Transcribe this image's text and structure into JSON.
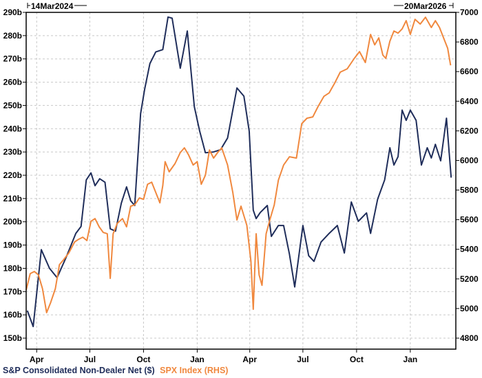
{
  "chart_data": {
    "type": "line",
    "title": "",
    "start_label": "14Mar2024",
    "end_label": "20Mar2026",
    "x_range": [
      "2024-03-14",
      "2026-03-20"
    ],
    "x_ticks": [
      {
        "date": "2024-04-01",
        "label": "Apr"
      },
      {
        "date": "2024-07-01",
        "label": "Jul"
      },
      {
        "date": "2024-10-01",
        "label": "Oct"
      },
      {
        "date": "2025-01-01",
        "label": "Jan"
      },
      {
        "date": "2025-04-01",
        "label": "Apr"
      },
      {
        "date": "2025-07-01",
        "label": "Jul"
      },
      {
        "date": "2025-10-01",
        "label": "Oct"
      },
      {
        "date": "2026-01-01",
        "label": "Jan"
      }
    ],
    "y_left": {
      "range": [
        150,
        290
      ],
      "ticks": [
        "150b",
        "160b",
        "170b",
        "180b",
        "190b",
        "200b",
        "210b",
        "220b",
        "230b",
        "240b",
        "250b",
        "260b",
        "270b",
        "280b",
        "290b"
      ]
    },
    "y_right": {
      "range": [
        4800,
        7000
      ],
      "ticks": [
        "4800",
        "5000",
        "5200",
        "5400",
        "5600",
        "5800",
        "6000",
        "6200",
        "6400",
        "6600",
        "6800",
        "7000"
      ]
    },
    "grid": true,
    "legend_placement": "bottom-left",
    "series": [
      {
        "name": "S&P Consolidated Non-Dealer Net ($)",
        "axis": "left",
        "color": "#1f2d5a",
        "points": [
          [
            "2024-03-16",
            161.8
          ],
          [
            "2024-03-26",
            155
          ],
          [
            "2024-04-09",
            188
          ],
          [
            "2024-04-23",
            180
          ],
          [
            "2024-05-06",
            176
          ],
          [
            "2024-05-21",
            184.5
          ],
          [
            "2024-06-07",
            195
          ],
          [
            "2024-06-16",
            198
          ],
          [
            "2024-06-25",
            218
          ],
          [
            "2024-07-03",
            221
          ],
          [
            "2024-07-10",
            215.5
          ],
          [
            "2024-07-18",
            218.5
          ],
          [
            "2024-07-27",
            217
          ],
          [
            "2024-08-05",
            197
          ],
          [
            "2024-08-14",
            196
          ],
          [
            "2024-08-24",
            208
          ],
          [
            "2024-09-02",
            215
          ],
          [
            "2024-09-09",
            209
          ],
          [
            "2024-09-16",
            207
          ],
          [
            "2024-09-26",
            246.5
          ],
          [
            "2024-10-03",
            257
          ],
          [
            "2024-10-12",
            268
          ],
          [
            "2024-10-22",
            273
          ],
          [
            "2024-11-03",
            274
          ],
          [
            "2024-11-12",
            288
          ],
          [
            "2024-11-19",
            287.5
          ],
          [
            "2024-12-03",
            266
          ],
          [
            "2024-12-15",
            282
          ],
          [
            "2024-12-27",
            249.5
          ],
          [
            "2025-01-05",
            239.2
          ],
          [
            "2025-01-15",
            229.7
          ],
          [
            "2025-01-29",
            230
          ],
          [
            "2025-02-10",
            231
          ],
          [
            "2025-02-22",
            236
          ],
          [
            "2025-03-10",
            257.5
          ],
          [
            "2025-03-22",
            254
          ],
          [
            "2025-03-31",
            239
          ],
          [
            "2025-04-07",
            205
          ],
          [
            "2025-04-12",
            201.4
          ],
          [
            "2025-04-19",
            204
          ],
          [
            "2025-05-01",
            207
          ],
          [
            "2025-05-08",
            193.7
          ],
          [
            "2025-05-20",
            198.4
          ],
          [
            "2025-05-29",
            198.4
          ],
          [
            "2025-06-08",
            186
          ],
          [
            "2025-06-17",
            172
          ],
          [
            "2025-07-01",
            198.4
          ],
          [
            "2025-07-11",
            185.4
          ],
          [
            "2025-07-20",
            183
          ],
          [
            "2025-08-01",
            191.3
          ],
          [
            "2025-08-15",
            195
          ],
          [
            "2025-08-29",
            198.4
          ],
          [
            "2025-09-10",
            186.6
          ],
          [
            "2025-09-22",
            208.5
          ],
          [
            "2025-10-04",
            200.2
          ],
          [
            "2025-10-18",
            203.8
          ],
          [
            "2025-10-25",
            195
          ],
          [
            "2025-11-06",
            209.7
          ],
          [
            "2025-11-18",
            218
          ],
          [
            "2025-11-27",
            231.8
          ],
          [
            "2025-12-04",
            224.4
          ],
          [
            "2025-12-11",
            228
          ],
          [
            "2025-12-18",
            248
          ],
          [
            "2025-12-25",
            243.6
          ],
          [
            "2026-01-01",
            248
          ],
          [
            "2026-01-11",
            243.6
          ],
          [
            "2026-01-20",
            224.4
          ],
          [
            "2026-01-30",
            231.8
          ],
          [
            "2026-02-06",
            227.4
          ],
          [
            "2026-02-13",
            233.3
          ],
          [
            "2026-02-22",
            226.2
          ],
          [
            "2026-03-04",
            244.5
          ],
          [
            "2026-03-12",
            219
          ]
        ]
      },
      {
        "name": "SPX Index (RHS)",
        "axis": "right",
        "color": "#f0883e",
        "points": [
          [
            "2024-03-14",
            5125
          ],
          [
            "2024-03-21",
            5236
          ],
          [
            "2024-03-28",
            5250
          ],
          [
            "2024-04-04",
            5227
          ],
          [
            "2024-04-11",
            5134
          ],
          [
            "2024-04-18",
            4972
          ],
          [
            "2024-04-25",
            5041
          ],
          [
            "2024-05-03",
            5134
          ],
          [
            "2024-05-10",
            5296
          ],
          [
            "2024-05-17",
            5329
          ],
          [
            "2024-05-26",
            5375
          ],
          [
            "2024-06-05",
            5450
          ],
          [
            "2024-06-12",
            5468
          ],
          [
            "2024-06-19",
            5482
          ],
          [
            "2024-06-26",
            5459
          ],
          [
            "2024-07-03",
            5589
          ],
          [
            "2024-07-10",
            5607
          ],
          [
            "2024-07-17",
            5552
          ],
          [
            "2024-07-24",
            5514
          ],
          [
            "2024-07-31",
            5505
          ],
          [
            "2024-08-05",
            5204
          ],
          [
            "2024-08-10",
            5505
          ],
          [
            "2024-08-17",
            5575
          ],
          [
            "2024-08-26",
            5607
          ],
          [
            "2024-09-02",
            5552
          ],
          [
            "2024-09-09",
            5691
          ],
          [
            "2024-09-16",
            5700
          ],
          [
            "2024-09-24",
            5747
          ],
          [
            "2024-10-01",
            5737
          ],
          [
            "2024-10-08",
            5839
          ],
          [
            "2024-10-15",
            5853
          ],
          [
            "2024-10-22",
            5784
          ],
          [
            "2024-10-29",
            5714
          ],
          [
            "2024-11-03",
            5830
          ],
          [
            "2024-11-07",
            5992
          ],
          [
            "2024-11-14",
            5923
          ],
          [
            "2024-11-24",
            5979
          ],
          [
            "2024-12-03",
            6053
          ],
          [
            "2024-12-10",
            6085
          ],
          [
            "2024-12-17",
            6039
          ],
          [
            "2024-12-25",
            5969
          ],
          [
            "2025-01-01",
            5992
          ],
          [
            "2025-01-08",
            5839
          ],
          [
            "2025-01-15",
            5900
          ],
          [
            "2025-01-22",
            6071
          ],
          [
            "2025-01-29",
            6016
          ],
          [
            "2025-02-05",
            6053
          ],
          [
            "2025-02-12",
            6085
          ],
          [
            "2025-02-22",
            5969
          ],
          [
            "2025-03-03",
            5784
          ],
          [
            "2025-03-10",
            5598
          ],
          [
            "2025-03-17",
            5691
          ],
          [
            "2025-03-27",
            5561
          ],
          [
            "2025-04-03",
            5320
          ],
          [
            "2025-04-07",
            4995
          ],
          [
            "2025-04-12",
            5505
          ],
          [
            "2025-04-17",
            5227
          ],
          [
            "2025-04-22",
            5157
          ],
          [
            "2025-04-29",
            5505
          ],
          [
            "2025-05-06",
            5607
          ],
          [
            "2025-05-13",
            5700
          ],
          [
            "2025-05-20",
            5867
          ],
          [
            "2025-05-29",
            5969
          ],
          [
            "2025-06-08",
            6025
          ],
          [
            "2025-06-20",
            6016
          ],
          [
            "2025-06-29",
            6248
          ],
          [
            "2025-07-08",
            6285
          ],
          [
            "2025-07-18",
            6294
          ],
          [
            "2025-07-27",
            6364
          ],
          [
            "2025-08-06",
            6433
          ],
          [
            "2025-08-15",
            6456
          ],
          [
            "2025-08-25",
            6526
          ],
          [
            "2025-09-03",
            6596
          ],
          [
            "2025-09-15",
            6619
          ],
          [
            "2025-09-27",
            6689
          ],
          [
            "2025-10-06",
            6735
          ],
          [
            "2025-10-16",
            6661
          ],
          [
            "2025-10-25",
            6851
          ],
          [
            "2025-11-01",
            6781
          ],
          [
            "2025-11-08",
            6828
          ],
          [
            "2025-11-15",
            6712
          ],
          [
            "2025-11-20",
            6689
          ],
          [
            "2025-11-27",
            6805
          ],
          [
            "2025-12-04",
            6874
          ],
          [
            "2025-12-11",
            6860
          ],
          [
            "2025-12-18",
            6888
          ],
          [
            "2025-12-25",
            6944
          ],
          [
            "2026-01-01",
            6851
          ],
          [
            "2026-01-09",
            6953
          ],
          [
            "2026-01-18",
            6921
          ],
          [
            "2026-01-27",
            6967
          ],
          [
            "2026-02-06",
            6898
          ],
          [
            "2026-02-13",
            6944
          ],
          [
            "2026-02-20",
            6898
          ],
          [
            "2026-02-27",
            6828
          ],
          [
            "2026-03-06",
            6758
          ],
          [
            "2026-03-11",
            6642
          ]
        ]
      }
    ]
  }
}
